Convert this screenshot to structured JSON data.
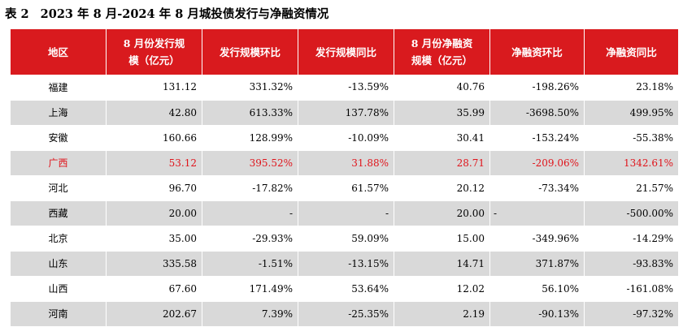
{
  "caption": {
    "number": "表 2",
    "title": "2023 年 8 月-2024 年 8 月城投债发行与净融资情况"
  },
  "table": {
    "headers": [
      "地区",
      "8 月份发行规模（亿元）",
      "发行规模环比",
      "发行规模同比",
      "8 月份净融资规模（亿元）",
      "净融资环比",
      "净融资同比"
    ],
    "rows": [
      {
        "cells": [
          "福建",
          "131.12",
          "331.32%",
          "-13.59%",
          "40.76",
          "-198.26%",
          "23.18%"
        ],
        "highlight": false
      },
      {
        "cells": [
          "上海",
          "42.80",
          "613.33%",
          "137.78%",
          "35.99",
          "-3698.50%",
          "499.95%"
        ],
        "highlight": false
      },
      {
        "cells": [
          "安徽",
          "160.66",
          "128.99%",
          "-10.09%",
          "30.41",
          "-153.24%",
          "-55.38%"
        ],
        "highlight": false
      },
      {
        "cells": [
          "广西",
          "53.12",
          "395.52%",
          "31.88%",
          "28.71",
          "-209.06%",
          "1342.61%"
        ],
        "highlight": true
      },
      {
        "cells": [
          "河北",
          "96.70",
          "-17.82%",
          "61.57%",
          "20.12",
          "-73.34%",
          "21.57%"
        ],
        "highlight": false
      },
      {
        "cells": [
          "西藏",
          "20.00",
          "-",
          "-",
          "20.00",
          "-",
          "-500.00%"
        ],
        "highlight": false
      },
      {
        "cells": [
          "北京",
          "35.00",
          "-29.93%",
          "59.09%",
          "15.00",
          "-349.96%",
          "-14.29%"
        ],
        "highlight": false
      },
      {
        "cells": [
          "山东",
          "335.58",
          "-1.51%",
          "-13.15%",
          "14.71",
          "371.87%",
          "-93.83%"
        ],
        "highlight": false
      },
      {
        "cells": [
          "山西",
          "67.60",
          "171.49%",
          "53.64%",
          "12.02",
          "56.10%",
          "-161.08%"
        ],
        "highlight": false
      },
      {
        "cells": [
          "河南",
          "202.67",
          "7.39%",
          "-25.35%",
          "2.19",
          "-90.13%",
          "-97.32%"
        ],
        "highlight": false
      }
    ]
  },
  "colors": {
    "header_bg": "#d91a1e",
    "header_text": "#ffffff",
    "stripe": "#d9d9d9",
    "highlight_text": "#e0141b"
  }
}
